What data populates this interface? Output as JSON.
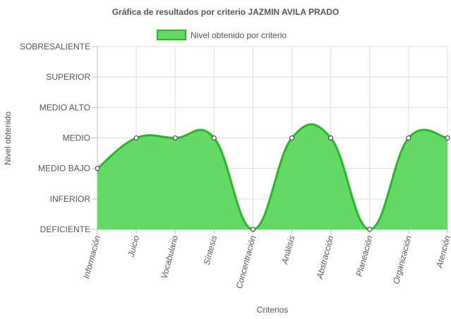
{
  "chart_data": {
    "type": "area",
    "title": "Gráfica de resultados por criterio JAZMIN AVILA PRADO",
    "xlabel": "Criterios",
    "ylabel": "Nivel obtenido",
    "y_levels": [
      "DEFICIENTE",
      "INFERIOR",
      "MEDIO BAJO",
      "MEDIO",
      "MEDIO ALTO",
      "SUPERIOR",
      "SOBRESALIENTE"
    ],
    "ylim": [
      0,
      6
    ],
    "categories": [
      "Información",
      "Juicio",
      "Vocabulario",
      "Síntesis",
      "Concentración",
      "Análisis",
      "Abstracción",
      "Planeación",
      "Organización",
      "Atención"
    ],
    "series": [
      {
        "name": "Nivel obtenido por criterio",
        "values": [
          2,
          3,
          3,
          3,
          0,
          3,
          3,
          0,
          3,
          3
        ],
        "fill_color": "#65d965",
        "line_color": "#22bb22"
      }
    ],
    "legend_position": "top",
    "grid": true
  }
}
